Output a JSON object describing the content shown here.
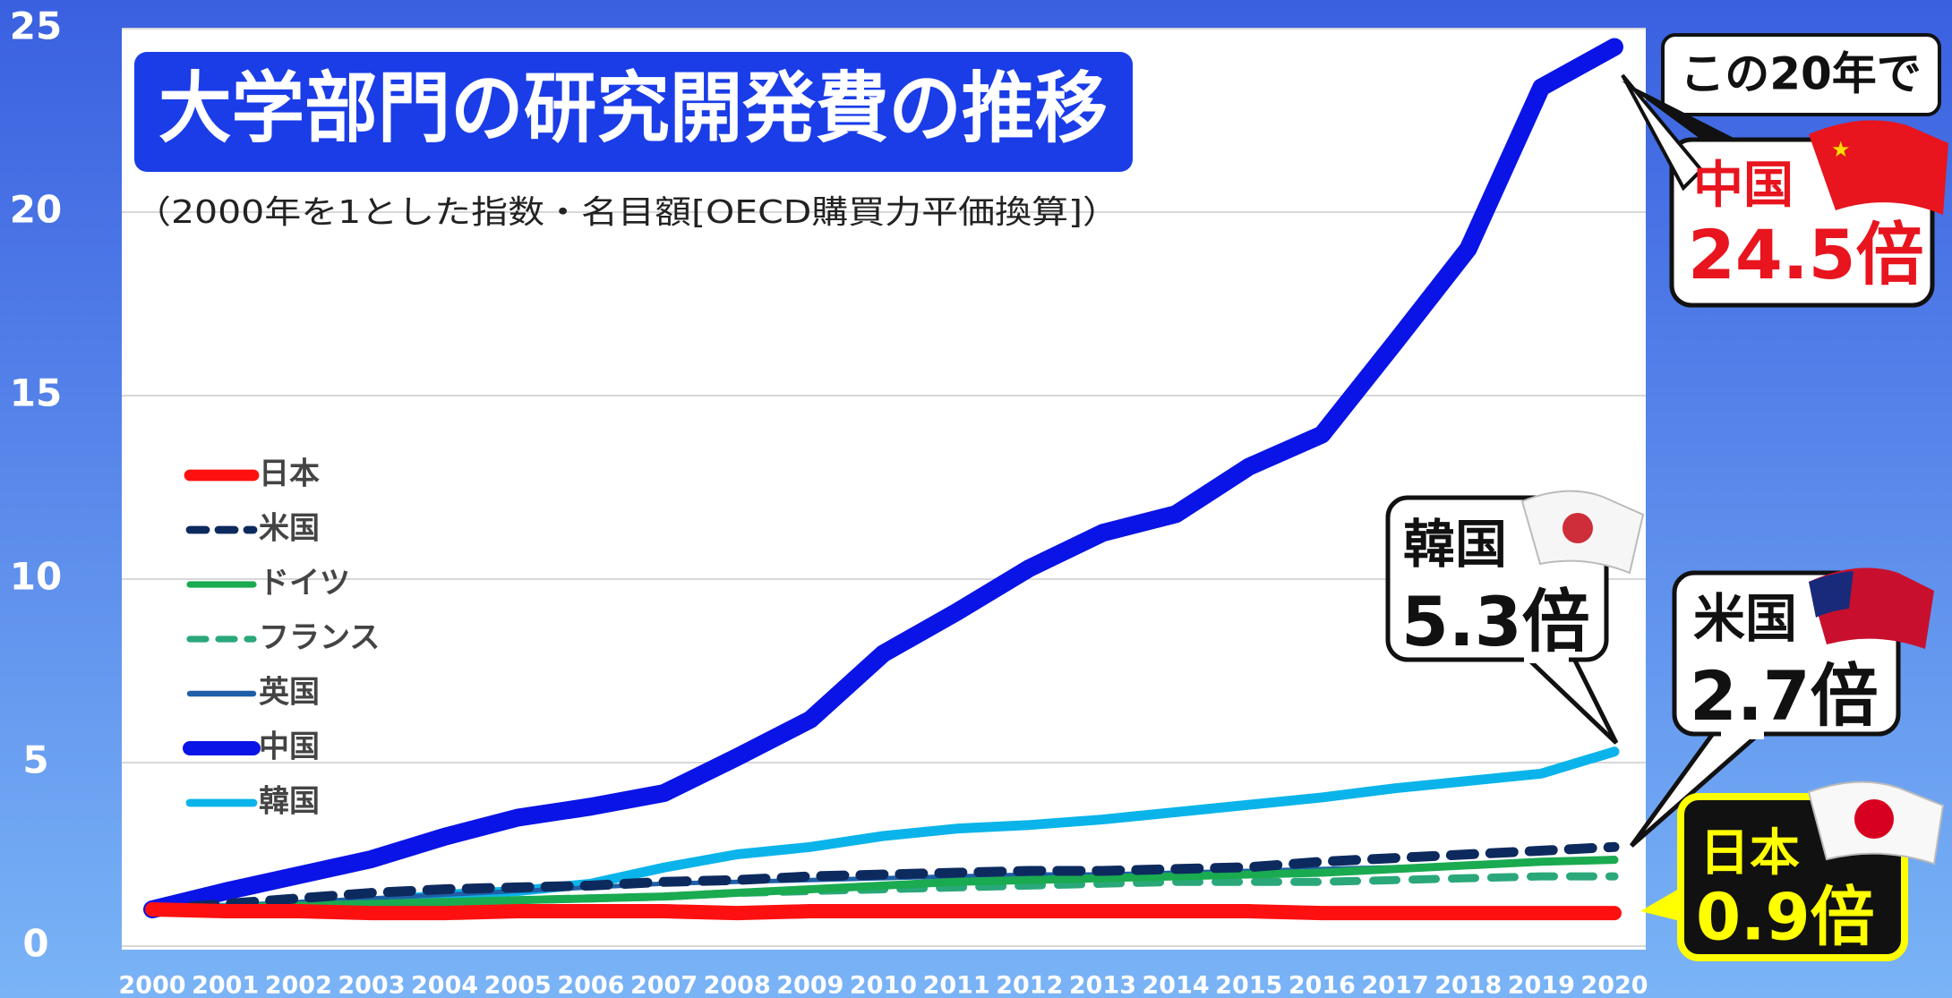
{
  "chart_data": {
    "type": "line",
    "title": "大学部門の研究開発費の推移",
    "subtitle": "（2000年を1とした指数・名目額[OECD購買力平価換算]）",
    "categories": [
      "2000",
      "2001",
      "2002",
      "2003",
      "2004",
      "2005",
      "2006",
      "2007",
      "2008",
      "2009",
      "2010",
      "2011",
      "2012",
      "2013",
      "2014",
      "2015",
      "2016",
      "2017",
      "2018",
      "2019",
      "2020"
    ],
    "ylim": [
      0,
      25
    ],
    "yticks": [
      0,
      5,
      10,
      15,
      20,
      25
    ],
    "grid": true,
    "legend": "left",
    "series": [
      {
        "name": "日本",
        "color": "#ff1010",
        "dashed": false,
        "values": [
          1.0,
          0.95,
          0.95,
          0.9,
          0.9,
          0.95,
          0.95,
          0.95,
          0.9,
          0.95,
          0.95,
          0.95,
          0.95,
          0.95,
          0.95,
          0.95,
          0.9,
          0.9,
          0.9,
          0.9,
          0.9
        ]
      },
      {
        "name": "米国",
        "color": "#0d2a5e",
        "dashed": true,
        "values": [
          1.0,
          1.15,
          1.3,
          1.45,
          1.55,
          1.6,
          1.65,
          1.75,
          1.8,
          1.9,
          1.95,
          2.0,
          2.05,
          2.05,
          2.1,
          2.15,
          2.3,
          2.4,
          2.5,
          2.6,
          2.7
        ]
      },
      {
        "name": "ドイツ",
        "color": "#1aaa50",
        "dashed": false,
        "values": [
          1.0,
          1.05,
          1.1,
          1.15,
          1.2,
          1.25,
          1.3,
          1.35,
          1.45,
          1.55,
          1.65,
          1.75,
          1.8,
          1.85,
          1.9,
          1.95,
          2.0,
          2.1,
          2.2,
          2.3,
          2.35
        ]
      },
      {
        "name": "フランス",
        "color": "#2aa87a",
        "dashed": true,
        "values": [
          1.0,
          1.05,
          1.1,
          1.15,
          1.2,
          1.25,
          1.3,
          1.35,
          1.45,
          1.5,
          1.55,
          1.6,
          1.65,
          1.7,
          1.75,
          1.75,
          1.75,
          1.8,
          1.85,
          1.9,
          1.9
        ]
      },
      {
        "name": "英国",
        "color": "#1f5fa8",
        "dashed": false,
        "values": [
          1.0,
          1.1,
          1.2,
          1.3,
          1.4,
          1.5,
          1.6,
          1.7,
          1.75,
          1.8,
          1.85,
          1.9,
          1.95,
          1.95,
          2.0,
          2.05,
          2.1,
          2.15,
          2.2,
          2.3,
          2.4
        ]
      },
      {
        "name": "中国",
        "color": "#0a14e6",
        "dashed": false,
        "values": [
          1.0,
          1.49,
          1.93,
          2.37,
          2.98,
          3.5,
          3.8,
          4.17,
          5.15,
          6.17,
          7.97,
          9.1,
          10.3,
          11.26,
          11.77,
          13.06,
          13.94,
          16.45,
          19.0,
          23.4,
          24.5
        ]
      },
      {
        "name": "韓国",
        "color": "#0ab4ea",
        "dashed": false,
        "values": [
          1.0,
          1.05,
          1.1,
          1.2,
          1.4,
          1.5,
          1.7,
          2.14,
          2.5,
          2.7,
          3.0,
          3.2,
          3.3,
          3.45,
          3.65,
          3.85,
          4.05,
          4.3,
          4.5,
          4.7,
          5.3
        ]
      }
    ],
    "annotations": [
      "この20年で",
      "中国",
      "24.5倍",
      "韓国",
      "5.3倍",
      "米国",
      "2.7倍",
      "日本",
      "0.9倍"
    ]
  }
}
